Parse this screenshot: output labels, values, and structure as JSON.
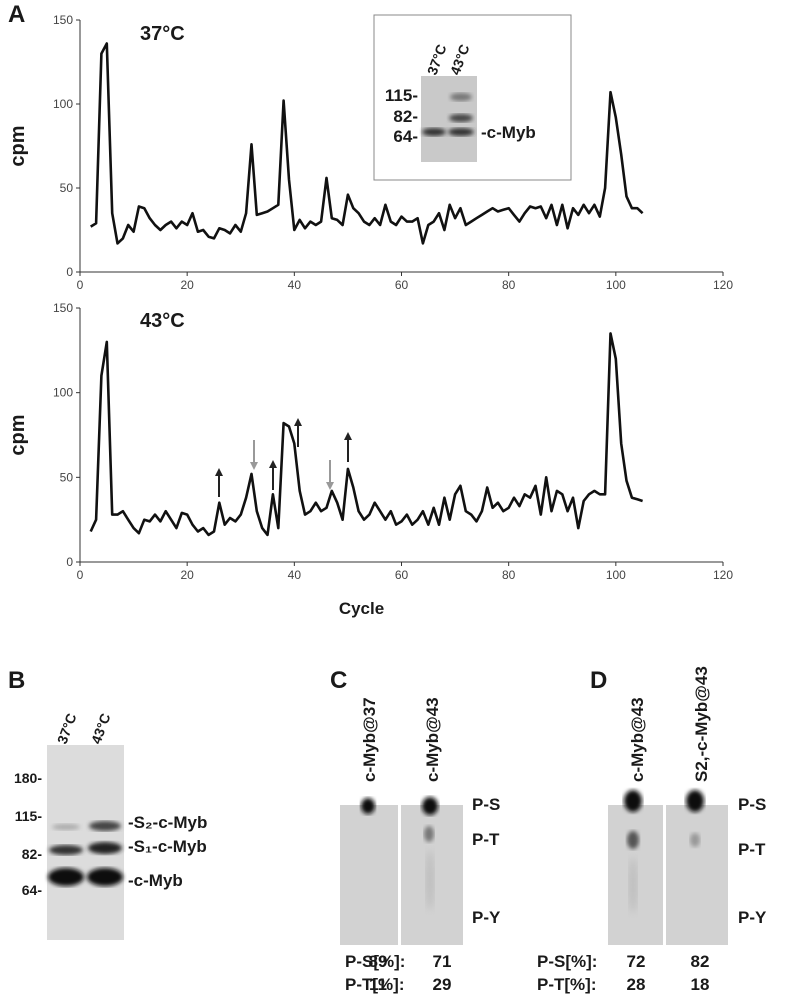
{
  "chart_data": [
    {
      "type": "line",
      "title": "37°C",
      "y_label": "cpm",
      "color": "#111111",
      "x": [
        2,
        3,
        4,
        5,
        6,
        7,
        8,
        9,
        10,
        11,
        12,
        13,
        14,
        15,
        16,
        17,
        18,
        19,
        20,
        21,
        22,
        23,
        24,
        25,
        26,
        27,
        28,
        29,
        30,
        31,
        32,
        33,
        34,
        35,
        36,
        37,
        38,
        39,
        40,
        41,
        42,
        43,
        44,
        45,
        46,
        47,
        48,
        49,
        50,
        51,
        52,
        53,
        54,
        55,
        56,
        57,
        58,
        59,
        60,
        61,
        62,
        63,
        64,
        65,
        66,
        67,
        68,
        69,
        70,
        71,
        72,
        73,
        74,
        75,
        76,
        77,
        78,
        79,
        80,
        81,
        82,
        83,
        84,
        85,
        86,
        87,
        88,
        89,
        90,
        91,
        92,
        93,
        94,
        95,
        96,
        97,
        98,
        99,
        100,
        101,
        102,
        103,
        104,
        105
      ],
      "values": [
        27,
        29,
        130,
        136,
        35,
        17,
        20,
        28,
        24,
        39,
        38,
        32,
        28,
        25,
        28,
        30,
        26,
        30,
        28,
        35,
        24,
        25,
        21,
        20,
        26,
        25,
        23,
        28,
        24,
        35,
        76,
        34,
        35,
        36,
        38,
        40,
        102,
        55,
        25,
        31,
        26,
        30,
        28,
        30,
        56,
        32,
        31,
        28,
        46,
        38,
        35,
        30,
        28,
        32,
        28,
        40,
        30,
        28,
        33,
        30,
        30,
        32,
        17,
        28,
        30,
        35,
        25,
        40,
        32,
        38,
        28,
        30,
        32,
        34,
        36,
        38,
        36,
        37,
        38,
        34,
        30,
        35,
        39,
        38,
        39,
        32,
        40,
        28,
        40,
        26,
        38,
        34,
        40,
        35,
        40,
        33,
        50,
        107,
        92,
        70,
        45,
        38,
        38,
        35
      ],
      "xlim": [
        0,
        120
      ],
      "xticks": [
        0,
        20,
        40,
        60,
        80,
        100,
        120
      ],
      "ylim": [
        0,
        150
      ],
      "yticks": [
        0,
        50,
        100,
        150
      ]
    },
    {
      "type": "line",
      "title": "43°C",
      "y_label": "cpm",
      "x_label": "Cycle",
      "color": "#111111",
      "x": [
        2,
        3,
        4,
        5,
        6,
        7,
        8,
        9,
        10,
        11,
        12,
        13,
        14,
        15,
        16,
        17,
        18,
        19,
        20,
        21,
        22,
        23,
        24,
        25,
        26,
        27,
        28,
        29,
        30,
        31,
        32,
        33,
        34,
        35,
        36,
        37,
        38,
        39,
        40,
        41,
        42,
        43,
        44,
        45,
        46,
        47,
        48,
        49,
        50,
        51,
        52,
        53,
        54,
        55,
        56,
        57,
        58,
        59,
        60,
        61,
        62,
        63,
        64,
        65,
        66,
        67,
        68,
        69,
        70,
        71,
        72,
        73,
        74,
        75,
        76,
        77,
        78,
        79,
        80,
        81,
        82,
        83,
        84,
        85,
        86,
        87,
        88,
        89,
        90,
        91,
        92,
        93,
        94,
        95,
        96,
        97,
        98,
        99,
        100,
        101,
        102,
        103,
        104,
        105
      ],
      "values": [
        18,
        25,
        110,
        130,
        28,
        28,
        30,
        25,
        20,
        17,
        25,
        24,
        28,
        24,
        30,
        25,
        20,
        29,
        28,
        22,
        18,
        20,
        16,
        18,
        35,
        22,
        26,
        24,
        28,
        38,
        52,
        30,
        20,
        16,
        40,
        20,
        82,
        80,
        70,
        42,
        28,
        30,
        35,
        30,
        32,
        42,
        35,
        25,
        55,
        44,
        30,
        25,
        28,
        35,
        30,
        25,
        30,
        22,
        24,
        28,
        22,
        25,
        30,
        22,
        32,
        22,
        38,
        25,
        40,
        45,
        30,
        28,
        24,
        30,
        44,
        32,
        35,
        30,
        32,
        38,
        33,
        40,
        38,
        45,
        28,
        50,
        30,
        42,
        40,
        30,
        38,
        20,
        36,
        40,
        42,
        40,
        40,
        135,
        120,
        70,
        48,
        38,
        37,
        36
      ],
      "xlim": [
        0,
        120
      ],
      "xticks": [
        0,
        20,
        40,
        60,
        80,
        100,
        120
      ],
      "ylim": [
        0,
        150
      ],
      "yticks": [
        0,
        50,
        100,
        150
      ]
    }
  ],
  "panel_labels": [
    "A",
    "B",
    "C",
    "D"
  ],
  "inset": {
    "lanes": [
      "37°C",
      "43°C"
    ],
    "markers": [
      "115-",
      "82-",
      "64-"
    ],
    "band_label": "-c-Myb"
  },
  "panel_b": {
    "lanes": [
      "37°C",
      "43°C"
    ],
    "markers": [
      "180-",
      "115-",
      "82-",
      "64-"
    ],
    "band_labels": [
      "-S₂-c-Myb",
      "-S₁-c-Myb",
      "-c-Myb"
    ]
  },
  "panel_c": {
    "lanes": [
      "c-Myb@37",
      "c-Myb@43"
    ],
    "spots": [
      "P-S",
      "P-T",
      "P-Y"
    ],
    "table": {
      "rows": [
        [
          "P-S[%]:",
          89,
          71
        ],
        [
          "P-T[%]:",
          11,
          29
        ]
      ]
    }
  },
  "panel_d": {
    "lanes": [
      "c-Myb@43",
      "S2,-c-Myb@43"
    ],
    "spots": [
      "P-S",
      "P-T",
      "P-Y"
    ],
    "table": {
      "rows": [
        [
          "P-S[%]:",
          72,
          82
        ],
        [
          "P-T[%]:",
          28,
          18
        ]
      ]
    }
  }
}
